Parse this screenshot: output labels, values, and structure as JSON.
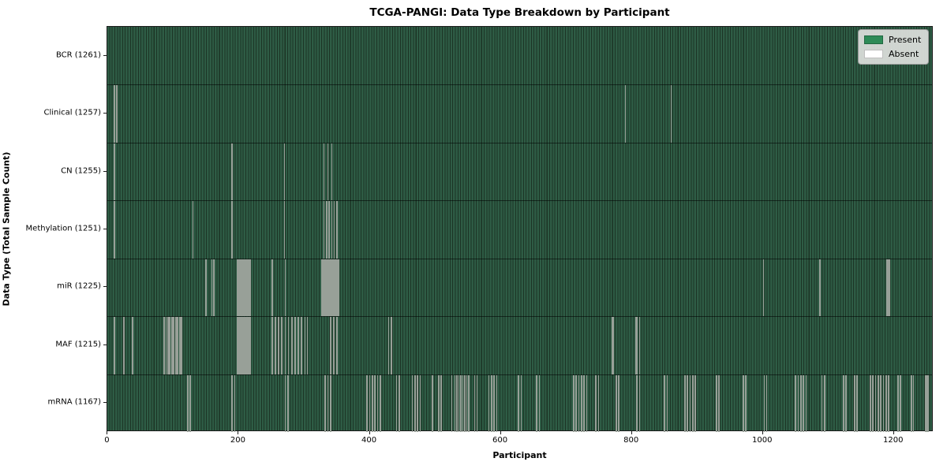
{
  "chart_data": {
    "type": "heatmap",
    "title": "TCGA-PANGI: Data Type Breakdown by Participant",
    "xlabel": "Participant",
    "ylabel": "Data Type (Total Sample Count)",
    "total_participants": 1261,
    "xlim": [
      -0.5,
      1260.5
    ],
    "x_ticks": [
      0,
      200,
      400,
      600,
      800,
      1000,
      1200
    ],
    "legend_position": "upper right",
    "grid": false,
    "legend": [
      {
        "label": "Present",
        "color": "#2e8b57"
      },
      {
        "label": "Absent",
        "color": "#ffffff"
      }
    ],
    "rows": [
      {
        "label": "BCR",
        "total": 1261,
        "absent_count": 0,
        "absent_positions": []
      },
      {
        "label": "Clinical",
        "total": 1257,
        "absent_count": 4,
        "absent_positions": [
          10,
          14,
          790,
          860
        ]
      },
      {
        "label": "CN",
        "total": 1255,
        "absent_count": 6,
        "absent_positions": [
          10,
          190,
          270,
          330,
          336,
          342
        ]
      },
      {
        "label": "Methylation",
        "total": 1251,
        "absent_count": 10,
        "absent_positions": [
          10,
          130,
          190,
          270,
          330,
          334,
          338,
          342,
          346,
          350
        ]
      },
      {
        "label": "miR",
        "total": 1225,
        "absent_count": 36,
        "absent_positions": [
          150,
          159,
          162,
          198,
          200,
          202,
          204,
          206,
          208,
          210,
          212,
          214,
          216,
          218,
          251,
          271,
          327,
          329,
          331,
          333,
          335,
          337,
          339,
          341,
          343,
          345,
          347,
          349,
          351,
          353,
          1001,
          1087,
          1189,
          1190,
          1191,
          1193
        ]
      },
      {
        "label": "MAF",
        "total": 1215,
        "absent_count": 46,
        "absent_positions": [
          10,
          25,
          38,
          86,
          89,
          92,
          95,
          98,
          101,
          104,
          107,
          110,
          113,
          198,
          200,
          202,
          204,
          206,
          208,
          210,
          212,
          214,
          216,
          218,
          251,
          256,
          261,
          266,
          271,
          276,
          281,
          286,
          291,
          296,
          301,
          305,
          340,
          345,
          350,
          429,
          433,
          770,
          772,
          806,
          808,
          812
        ]
      },
      {
        "label": "mRNA",
        "total": 1167,
        "absent_count": 94,
        "absent_positions": [
          122,
          126,
          190,
          194,
          271,
          275,
          332,
          336,
          340,
          396,
          400,
          404,
          408,
          412,
          416,
          441,
          445,
          465,
          469,
          473,
          477,
          496,
          505,
          509,
          525,
          530,
          533,
          536,
          539,
          542,
          545,
          548,
          551,
          560,
          564,
          582,
          586,
          590,
          594,
          627,
          631,
          655,
          659,
          711,
          715,
          719,
          723,
          727,
          731,
          745,
          749,
          776,
          780,
          808,
          812,
          850,
          854,
          881,
          885,
          889,
          893,
          897,
          929,
          933,
          970,
          974,
          1002,
          1006,
          1050,
          1054,
          1058,
          1062,
          1066,
          1090,
          1094,
          1123,
          1127,
          1140,
          1144,
          1164,
          1168,
          1172,
          1176,
          1180,
          1184,
          1188,
          1192,
          1206,
          1210,
          1227,
          1230,
          1248,
          1250,
          1252
        ]
      }
    ],
    "colors": {
      "present_legend": "#2e8b57",
      "absent_legend": "#ffffff",
      "bar_fill_rendered": "#2e5c45",
      "bar_edge_rendered": "#1c3425",
      "absent_line_rendered": "#98a098",
      "legend_background": "#d9dcd9",
      "figure_background": "#ffffff",
      "text": "#000000"
    }
  }
}
